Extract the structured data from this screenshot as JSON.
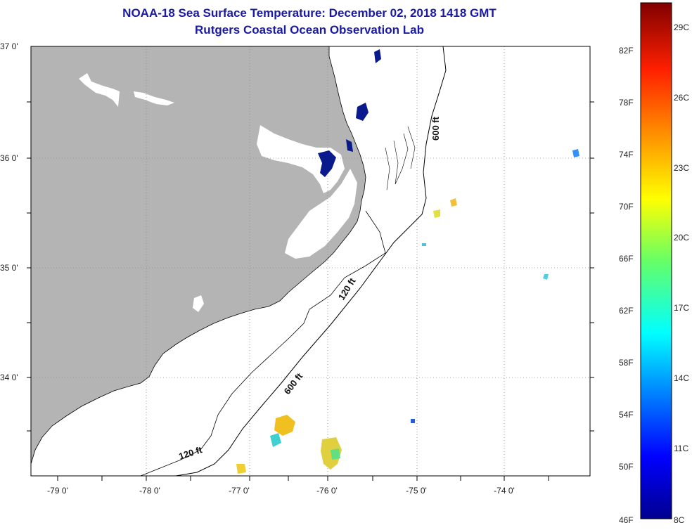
{
  "header": {
    "title": "NOAA-18 Sea Surface Temperature:  December 02, 2018 1418 GMT",
    "subtitle": "Rutgers Coastal Ocean Observation Lab"
  },
  "map": {
    "lat_labels": [
      "37 0'",
      "36 0'",
      "35 0'",
      "34 0'"
    ],
    "lon_labels": [
      "-79 0'",
      "-78 0'",
      "-77 0'",
      "-76 0'",
      "-75 0'",
      "-74 0'"
    ],
    "depth_labels": {
      "d600_north": "600 ft",
      "d120_mid": "120 ft",
      "d600_south": "600 ft",
      "d120_south": "120 ft"
    },
    "colors": {
      "land": "#b4b4b4",
      "cold": "#0a1a8c",
      "grid": "#888888"
    }
  },
  "colorbar": {
    "fahrenheit": [
      "82F",
      "78F",
      "74F",
      "70F",
      "66F",
      "62F",
      "58F",
      "54F",
      "50F",
      "46F"
    ],
    "celsius": [
      "29C",
      "26C",
      "23C",
      "20C",
      "17C",
      "14C",
      "11C",
      "8C"
    ]
  }
}
